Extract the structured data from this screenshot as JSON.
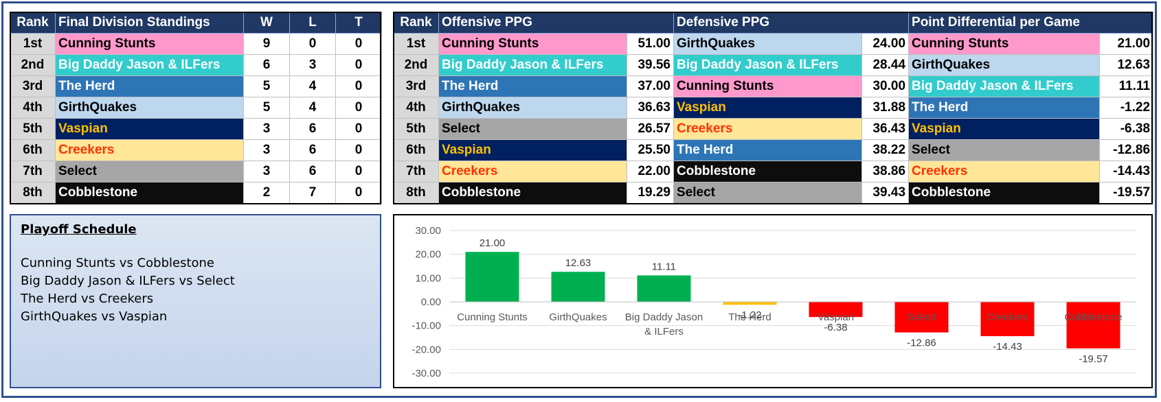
{
  "standings": {
    "headers": {
      "rank": "Rank",
      "team": "Final Division Standings",
      "w": "W",
      "l": "L",
      "t": "T"
    },
    "rows": [
      {
        "rank": "1st",
        "team": "Cunning Stunts",
        "w": "9",
        "l": "0",
        "t": "0"
      },
      {
        "rank": "2nd",
        "team": "Big Daddy Jason & ILFers",
        "w": "6",
        "l": "3",
        "t": "0"
      },
      {
        "rank": "3rd",
        "team": "The Herd",
        "w": "5",
        "l": "4",
        "t": "0"
      },
      {
        "rank": "4th",
        "team": "GirthQuakes",
        "w": "5",
        "l": "4",
        "t": "0"
      },
      {
        "rank": "5th",
        "team": "Vaspian",
        "w": "3",
        "l": "6",
        "t": "0"
      },
      {
        "rank": "6th",
        "team": "Creekers",
        "w": "3",
        "l": "6",
        "t": "0"
      },
      {
        "rank": "7th",
        "team": "Select",
        "w": "3",
        "l": "6",
        "t": "0"
      },
      {
        "rank": "8th",
        "team": "Cobblestone",
        "w": "2",
        "l": "7",
        "t": "0"
      }
    ]
  },
  "stats": {
    "headers": {
      "rank": "Rank",
      "off": "Offensive PPG",
      "def": "Defensive PPG",
      "diff": "Point Differential per Game"
    },
    "rows": [
      {
        "rank": "1st",
        "off_team": "Cunning Stunts",
        "off_val": "51.00",
        "def_team": "GirthQuakes",
        "def_val": "24.00",
        "diff_team": "Cunning Stunts",
        "diff_val": "21.00"
      },
      {
        "rank": "2nd",
        "off_team": "Big Daddy Jason & ILFers",
        "off_val": "39.56",
        "def_team": "Big Daddy Jason & ILFers",
        "def_val": "28.44",
        "diff_team": "GirthQuakes",
        "diff_val": "12.63"
      },
      {
        "rank": "3rd",
        "off_team": "The Herd",
        "off_val": "37.00",
        "def_team": "Cunning Stunts",
        "def_val": "30.00",
        "diff_team": "Big Daddy Jason & ILFers",
        "diff_val": "11.11"
      },
      {
        "rank": "4th",
        "off_team": "GirthQuakes",
        "off_val": "36.63",
        "def_team": "Vaspian",
        "def_val": "31.88",
        "diff_team": "The Herd",
        "diff_val": "-1.22"
      },
      {
        "rank": "5th",
        "off_team": "Select",
        "off_val": "26.57",
        "def_team": "Creekers",
        "def_val": "36.43",
        "diff_team": "Vaspian",
        "diff_val": "-6.38"
      },
      {
        "rank": "6th",
        "off_team": "Vaspian",
        "off_val": "25.50",
        "def_team": "The Herd",
        "def_val": "38.22",
        "diff_team": "Select",
        "diff_val": "-12.86"
      },
      {
        "rank": "7th",
        "off_team": "Creekers",
        "off_val": "22.00",
        "def_team": "Cobblestone",
        "def_val": "38.86",
        "diff_team": "Creekers",
        "diff_val": "-14.43"
      },
      {
        "rank": "8th",
        "off_team": "Cobblestone",
        "off_val": "19.29",
        "def_team": "Select",
        "def_val": "39.43",
        "diff_team": "Cobblestone",
        "diff_val": "-19.57"
      }
    ]
  },
  "team_colors": {
    "Cunning Stunts": {
      "bg": "#ff99cc",
      "fg": "#000000"
    },
    "Big Daddy Jason & ILFers": {
      "bg": "#33cccc",
      "fg": "#ffffff"
    },
    "The Herd": {
      "bg": "#2e75b6",
      "fg": "#ffffff"
    },
    "GirthQuakes": {
      "bg": "#bdd7ee",
      "fg": "#000000"
    },
    "Vaspian": {
      "bg": "#002060",
      "fg": "#ffc000"
    },
    "Creekers": {
      "bg": "#ffe699",
      "fg": "#ff3300"
    },
    "Select": {
      "bg": "#a6a6a6",
      "fg": "#000000"
    },
    "Cobblestone": {
      "bg": "#0d0d0d",
      "fg": "#ffffff"
    }
  },
  "playoff": {
    "title": "Playoff Schedule",
    "matchups": [
      "Cunning Stunts vs Cobblestone",
      "Big Daddy Jason & ILFers vs Select",
      "The Herd vs Creekers",
      "GirthQuakes vs Vaspian"
    ]
  },
  "chart_data": {
    "type": "bar",
    "categories": [
      "Cunning Stunts",
      "GirthQuakes",
      "Big Daddy Jason & ILFers",
      "The Herd",
      "Vaspian",
      "Select",
      "Creekers",
      "Cobblestone"
    ],
    "category_label_lines": [
      [
        "Cunning Stunts"
      ],
      [
        "GirthQuakes"
      ],
      [
        "Big Daddy Jason",
        "& ILFers"
      ],
      [
        "The Herd"
      ],
      [
        "Vaspian"
      ],
      [
        "Select"
      ],
      [
        "Creekers"
      ],
      [
        "Cobblestone"
      ]
    ],
    "values": [
      21.0,
      12.63,
      11.11,
      -1.22,
      -6.38,
      -12.86,
      -14.43,
      -19.57
    ],
    "value_labels": [
      "21.00",
      "12.63",
      "11.11",
      "-1.22",
      "-6.38",
      "-12.86",
      "-14.43",
      "-19.57"
    ],
    "bar_colors": [
      "#00b050",
      "#00b050",
      "#00b050",
      "#ffc000",
      "#ff0000",
      "#ff0000",
      "#ff0000",
      "#ff0000"
    ],
    "yticks": [
      "30.00",
      "20.00",
      "10.00",
      "0.00",
      "-10.00",
      "-20.00",
      "-30.00"
    ],
    "ylim": [
      -30,
      30
    ],
    "grid": true,
    "title": "",
    "xlabel": "",
    "ylabel": ""
  }
}
